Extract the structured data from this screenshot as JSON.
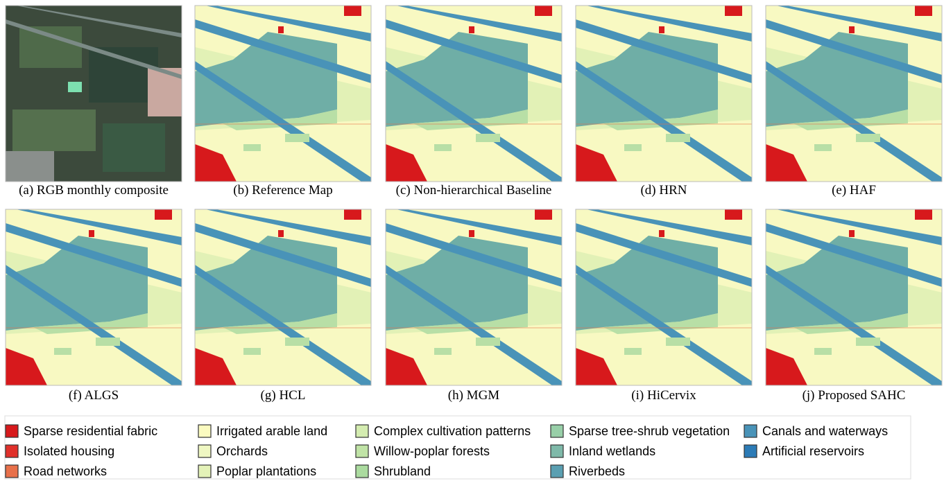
{
  "panels": [
    {
      "caption": "(a) RGB monthly composite"
    },
    {
      "caption": "(b) Reference Map"
    },
    {
      "caption": "(c) Non-hierarchical Baseline"
    },
    {
      "caption": "(d) HRN"
    },
    {
      "caption": "(e) HAF"
    },
    {
      "caption": "(f) ALGS"
    },
    {
      "caption": "(g) HCL"
    },
    {
      "caption": "(h) MGM"
    },
    {
      "caption": "(i) HiCervix"
    },
    {
      "caption": "(j) Proposed SAHC"
    }
  ],
  "legend": {
    "items": [
      {
        "label": "Sparse residential fabric",
        "color": "#d7191c"
      },
      {
        "label": "Isolated housing",
        "color": "#e0302a"
      },
      {
        "label": "Road networks",
        "color": "#e8704a"
      },
      {
        "label": "Irrigated arable land",
        "color": "#fbfbc0"
      },
      {
        "label": "Orchards",
        "color": "#eff7c2"
      },
      {
        "label": "Poplar plantations",
        "color": "#e4f2b8"
      },
      {
        "label": "Complex cultivation patterns",
        "color": "#d4ecb0"
      },
      {
        "label": "Willow-poplar forests",
        "color": "#c0e3a6"
      },
      {
        "label": "Shrubland",
        "color": "#abdb9f"
      },
      {
        "label": "Sparse tree-shrub vegetation",
        "color": "#98cfa8"
      },
      {
        "label": "Inland wetlands",
        "color": "#7fb9a9"
      },
      {
        "label": "Riverbeds",
        "color": "#5a9fb1"
      },
      {
        "label": "Canals and waterways",
        "color": "#4993b8"
      },
      {
        "label": "Artificial reservoirs",
        "color": "#2c7bb6"
      }
    ]
  }
}
